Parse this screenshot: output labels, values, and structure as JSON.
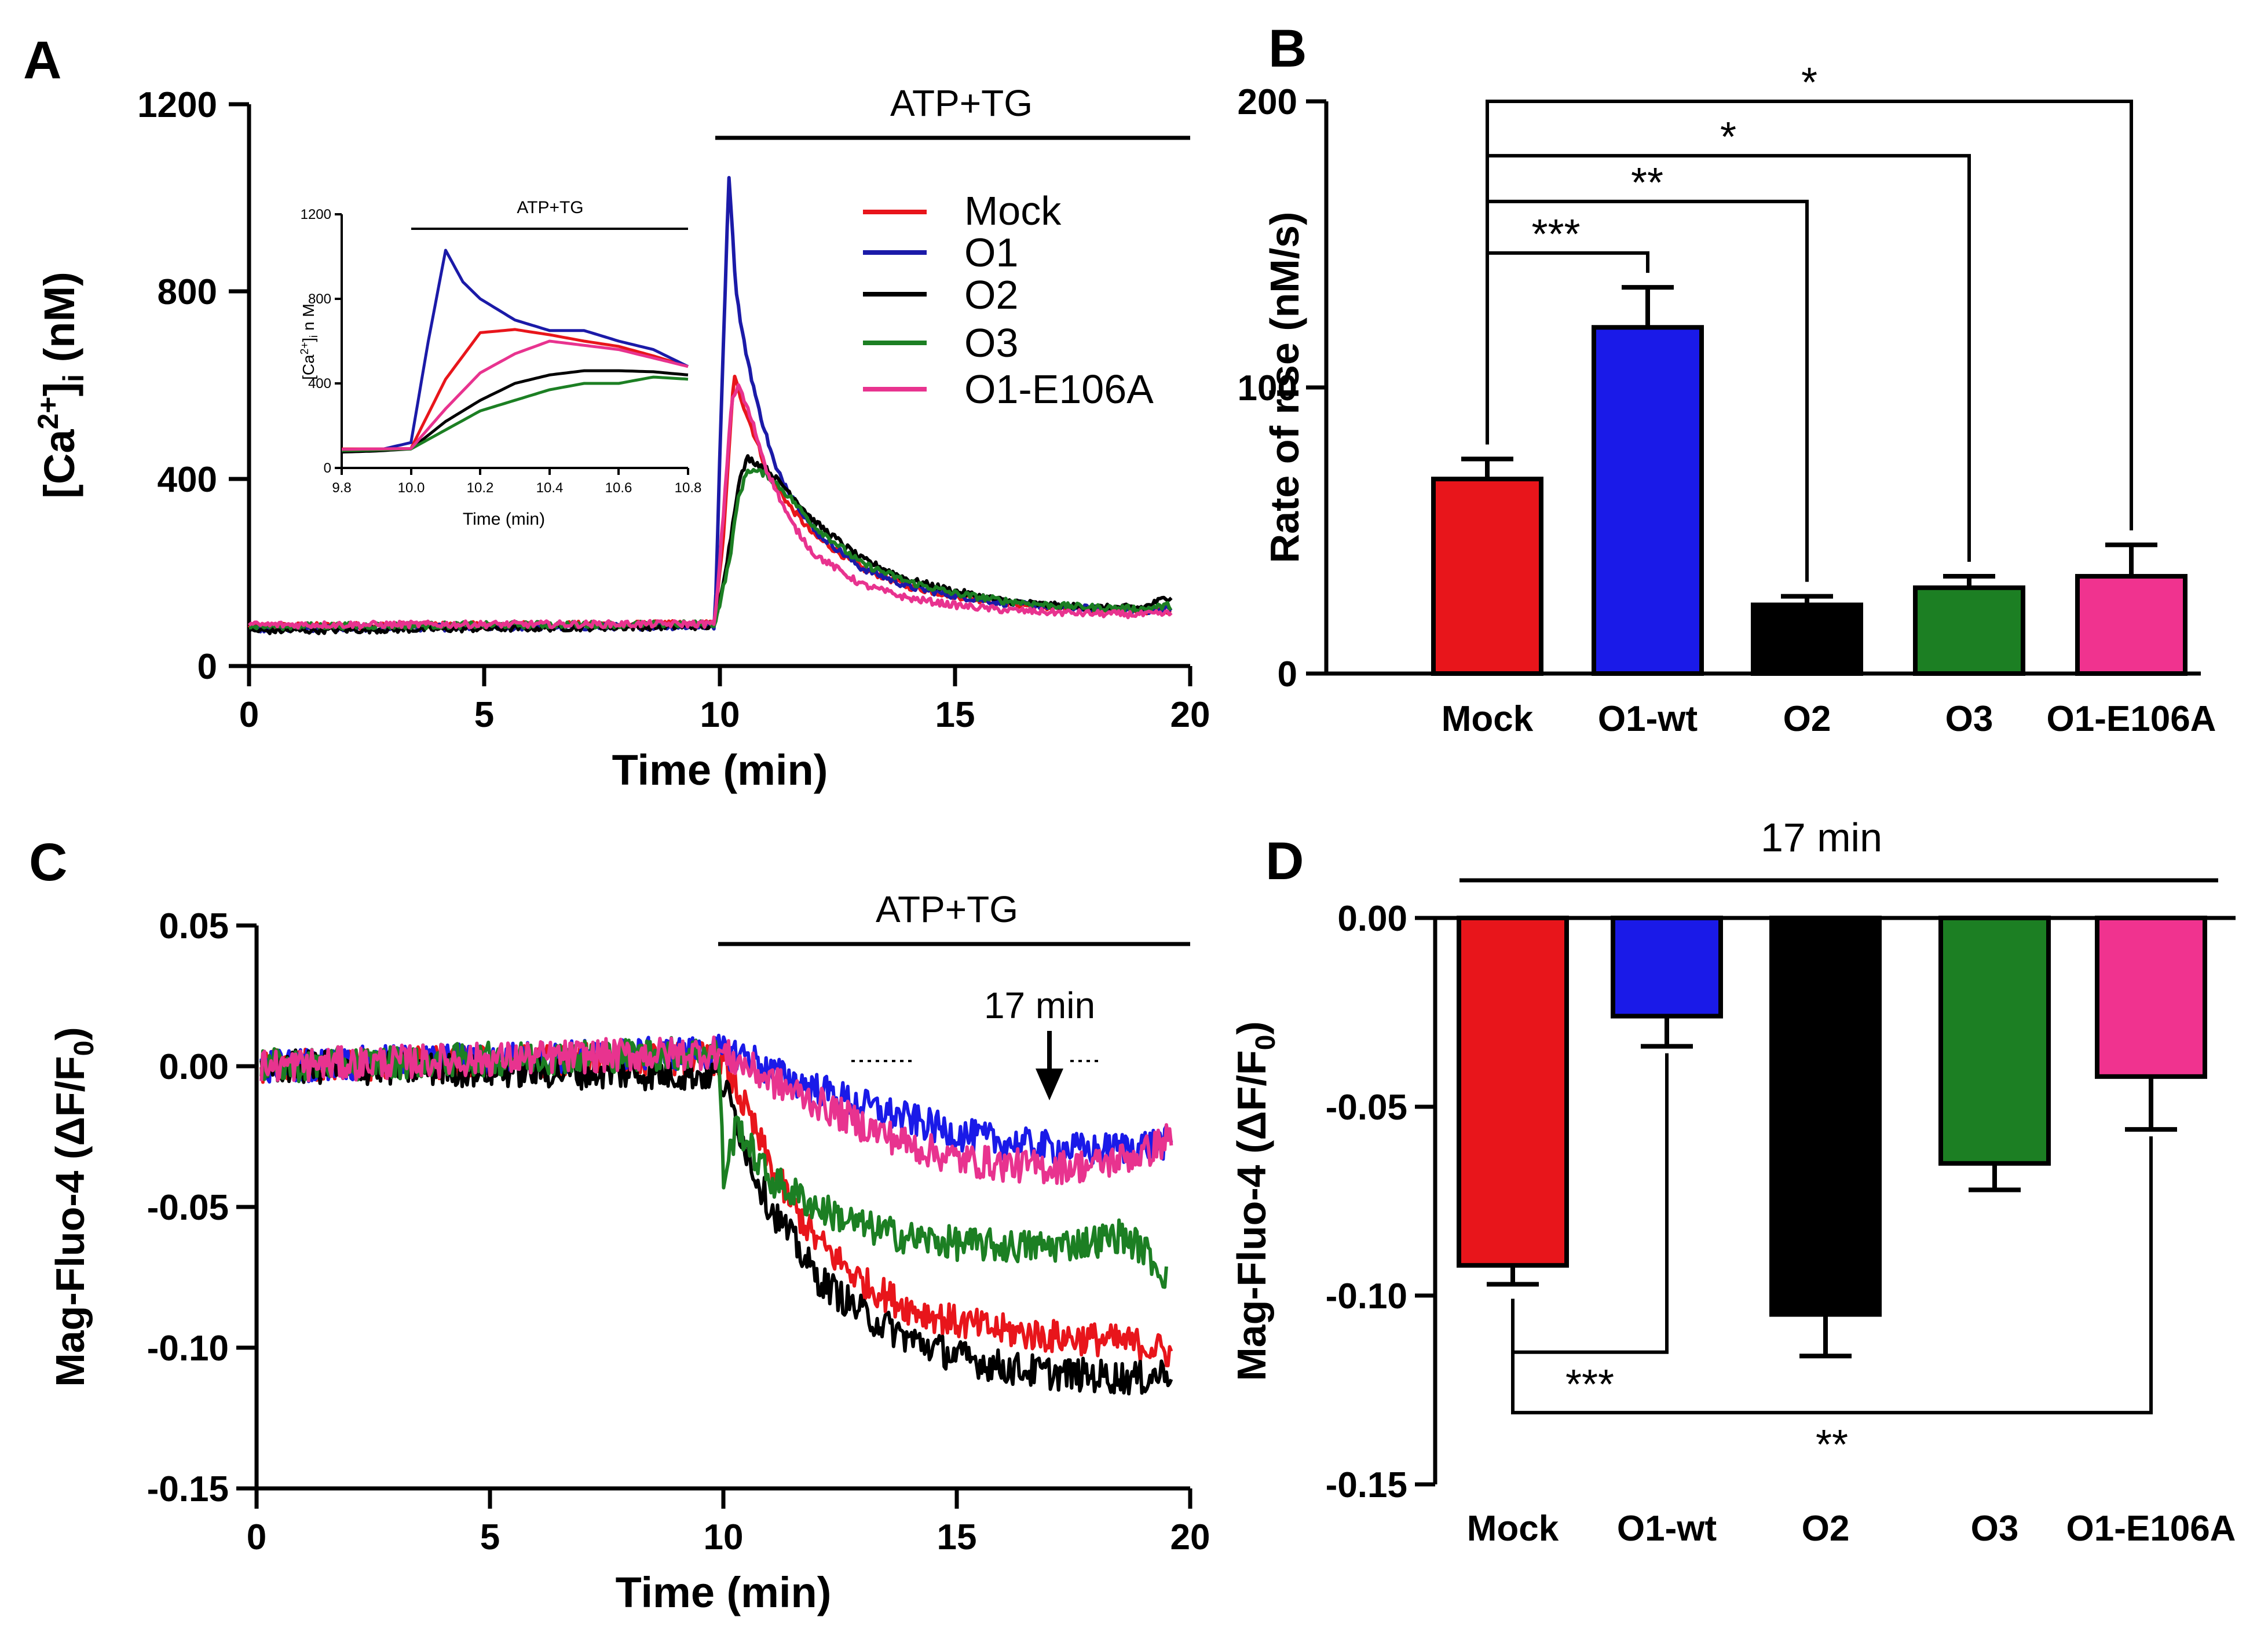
{
  "chart_data": [
    {
      "panel": "A",
      "type": "line",
      "stim_label": "ATP+TG",
      "xlabel": "Time (min)",
      "ylabel": {
        "base": "[Ca",
        "sup": "2+",
        "close": "]",
        "sub": "i",
        "unit": " (nM)"
      },
      "xlim": [
        0,
        20
      ],
      "ylim": [
        0,
        1200
      ],
      "xticks": [
        "0",
        "5",
        "10",
        "15",
        "20"
      ],
      "yticks": [
        "0",
        "400",
        "800",
        "1200"
      ],
      "stim_range": [
        10,
        20
      ],
      "legend": [
        "Mock",
        "O1",
        "O2",
        "O3",
        "O1-E106A"
      ],
      "series": [
        {
          "name": "Mock",
          "color": "#e8151b",
          "baseline": 88,
          "x": [
            0,
            9.9,
            10.1,
            10.3,
            10.5,
            11,
            11.5,
            12,
            13,
            14,
            15,
            16,
            17,
            18,
            19,
            19.6
          ],
          "y": [
            85,
            90,
            300,
            620,
            560,
            420,
            340,
            280,
            210,
            170,
            150,
            135,
            125,
            120,
            118,
            120
          ]
        },
        {
          "name": "O1",
          "color": "#1b1aa8",
          "baseline": 82,
          "x": [
            0,
            9.9,
            10.05,
            10.2,
            10.35,
            10.5,
            10.8,
            11.2,
            12,
            13,
            14,
            15,
            16,
            17,
            18,
            19,
            19.6
          ],
          "y": [
            80,
            85,
            600,
            1050,
            800,
            700,
            560,
            420,
            290,
            210,
            170,
            150,
            135,
            128,
            122,
            118,
            122
          ]
        },
        {
          "name": "O2",
          "color": "#000000",
          "baseline": 75,
          "x": [
            0,
            9.9,
            10.2,
            10.4,
            10.6,
            11,
            11.5,
            12,
            13,
            14,
            15,
            16,
            17,
            18,
            19,
            19.6
          ],
          "y": [
            75,
            85,
            250,
            390,
            445,
            420,
            370,
            310,
            230,
            185,
            160,
            140,
            130,
            125,
            125,
            150
          ]
        },
        {
          "name": "O3",
          "color": "#1c7f23",
          "baseline": 85,
          "x": [
            0,
            9.9,
            10.2,
            10.4,
            10.6,
            11,
            11.5,
            12,
            13,
            14,
            15,
            16,
            17,
            18,
            19,
            19.6
          ],
          "y": [
            85,
            90,
            220,
            360,
            420,
            410,
            360,
            300,
            220,
            180,
            155,
            140,
            130,
            125,
            122,
            130
          ]
        },
        {
          "name": "O1-E106A",
          "color": "#e8338f",
          "baseline": 90,
          "x": [
            0,
            9.9,
            10.1,
            10.25,
            10.4,
            10.7,
            11,
            11.5,
            12,
            13,
            14,
            15,
            16,
            17,
            18,
            19,
            19.6
          ],
          "y": [
            88,
            90,
            350,
            560,
            600,
            520,
            420,
            310,
            240,
            175,
            145,
            130,
            120,
            115,
            112,
            110,
            112
          ]
        }
      ],
      "inset": {
        "type": "line",
        "stim_label": "ATP+TG",
        "xlabel": "Time (min)",
        "ylabel": {
          "base": "[Ca",
          "sup": "2+",
          "close": "]",
          "sub": "i",
          "unit": " n M"
        },
        "xlim": [
          9.8,
          10.8
        ],
        "ylim": [
          0,
          1200
        ],
        "xticks": [
          "9.8",
          "10.0",
          "10.2",
          "10.4",
          "10.6",
          "10.8"
        ],
        "yticks": [
          "0",
          "400",
          "800",
          "1200"
        ],
        "stim_range": [
          10,
          10.8
        ],
        "series": [
          {
            "name": "Mock",
            "color": "#e8151b",
            "x": [
              9.8,
              9.9,
              10.0,
              10.1,
              10.2,
              10.3,
              10.4,
              10.5,
              10.6,
              10.7,
              10.8
            ],
            "y": [
              90,
              90,
              92,
              420,
              640,
              655,
              630,
              600,
              575,
              530,
              480
            ]
          },
          {
            "name": "O1",
            "color": "#1b1aa8",
            "x": [
              9.8,
              9.9,
              10.0,
              10.05,
              10.1,
              10.15,
              10.2,
              10.3,
              10.4,
              10.5,
              10.6,
              10.7,
              10.8
            ],
            "y": [
              80,
              82,
              120,
              600,
              1030,
              880,
              800,
              700,
              650,
              650,
              600,
              560,
              480
            ]
          },
          {
            "name": "O2",
            "color": "#000000",
            "x": [
              9.8,
              9.9,
              10.0,
              10.1,
              10.2,
              10.3,
              10.4,
              10.5,
              10.6,
              10.7,
              10.8
            ],
            "y": [
              75,
              80,
              90,
              220,
              320,
              400,
              440,
              460,
              460,
              455,
              440
            ]
          },
          {
            "name": "O3",
            "color": "#1c7f23",
            "x": [
              9.8,
              9.9,
              10.0,
              10.1,
              10.2,
              10.3,
              10.4,
              10.5,
              10.6,
              10.7,
              10.8
            ],
            "y": [
              82,
              85,
              90,
              180,
              270,
              320,
              370,
              400,
              400,
              430,
              420
            ]
          },
          {
            "name": "O1-E106A",
            "color": "#e8338f",
            "x": [
              9.8,
              9.9,
              10.0,
              10.1,
              10.2,
              10.3,
              10.4,
              10.5,
              10.6,
              10.7,
              10.8
            ],
            "y": [
              88,
              90,
              92,
              280,
              450,
              540,
              600,
              580,
              560,
              520,
              480
            ]
          }
        ]
      }
    },
    {
      "panel": "B",
      "type": "bar",
      "ylabel": "Rate of rise (nM/s)",
      "ylim": [
        0,
        200
      ],
      "yticks": [
        "0",
        "100",
        "200"
      ],
      "categories": [
        "Mock",
        "O1-wt",
        "O2",
        "O3",
        "O1-E106A"
      ],
      "values": [
        68,
        121,
        24,
        30,
        34
      ],
      "errors": [
        7,
        14,
        3,
        4,
        11
      ],
      "colors": [
        "#e8151b",
        "#1a1ae8",
        "#000000",
        "#1c7f23",
        "#f0338f"
      ],
      "significance": [
        {
          "from": 0,
          "to": 1,
          "label": "***",
          "level": 147
        },
        {
          "from": 0,
          "to": 2,
          "label": "**",
          "level": 165
        },
        {
          "from": 0,
          "to": 3,
          "label": "*",
          "level": 181
        },
        {
          "from": 0,
          "to": 4,
          "label": "*",
          "level": 200
        }
      ]
    },
    {
      "panel": "C",
      "type": "line",
      "stim_label": "ATP+TG",
      "annotation": "17 min",
      "annotation_x": 17,
      "xlabel": "Time (min)",
      "ylabel": {
        "base": "Mag-Fluo-4 (",
        "delta": "ΔF/F",
        "sub": "0",
        "close": ")"
      },
      "xlim": [
        0,
        20
      ],
      "ylim": [
        -0.15,
        0.05
      ],
      "xticks": [
        "0",
        "5",
        "10",
        "15",
        "20"
      ],
      "yticks": [
        "-0.15",
        "-0.10",
        "-0.05",
        "0.00",
        "0.05"
      ],
      "stim_range": [
        10,
        20
      ],
      "series": [
        {
          "name": "Mock",
          "color": "#e8151b",
          "x": [
            0,
            9.9,
            10.2,
            10.6,
            11,
            11.5,
            12,
            13,
            14,
            15,
            16,
            17,
            18,
            19,
            19.6
          ],
          "y": [
            0,
            0.003,
            -0.005,
            -0.02,
            -0.035,
            -0.05,
            -0.062,
            -0.077,
            -0.086,
            -0.091,
            -0.094,
            -0.096,
            -0.097,
            -0.099,
            -0.102
          ]
        },
        {
          "name": "O1",
          "color": "#1a1ae8",
          "x": [
            0,
            9.9,
            10.5,
            11,
            12,
            13,
            14,
            15,
            16,
            17,
            18,
            19,
            19.6
          ],
          "y": [
            0,
            0.005,
            0.004,
            -0.002,
            -0.008,
            -0.014,
            -0.019,
            -0.024,
            -0.027,
            -0.029,
            -0.03,
            -0.028,
            -0.027
          ]
        },
        {
          "name": "O2",
          "color": "#000000",
          "x": [
            0,
            9.9,
            10.2,
            10.6,
            11,
            11.5,
            12,
            13,
            14,
            15,
            16,
            17,
            18,
            19,
            19.6
          ],
          "y": [
            0,
            -0.003,
            -0.015,
            -0.035,
            -0.05,
            -0.062,
            -0.075,
            -0.088,
            -0.097,
            -0.103,
            -0.107,
            -0.109,
            -0.11,
            -0.111,
            -0.108
          ]
        },
        {
          "name": "O3",
          "color": "#1c7f23",
          "x": [
            0,
            9.9,
            10.0,
            10.3,
            10.6,
            11,
            12,
            13,
            14,
            15,
            16,
            17,
            18,
            18.5,
            19,
            19.5
          ],
          "y": [
            0,
            0.005,
            -0.04,
            -0.02,
            -0.03,
            -0.04,
            -0.05,
            -0.057,
            -0.061,
            -0.063,
            -0.064,
            -0.064,
            -0.062,
            -0.06,
            -0.065,
            -0.075
          ]
        },
        {
          "name": "O1-E106A",
          "color": "#e8338f",
          "x": [
            0,
            9.9,
            10.5,
            11,
            12,
            13,
            14,
            15,
            16,
            17,
            18,
            19,
            19.6
          ],
          "y": [
            0,
            0.005,
            0.0,
            -0.005,
            -0.013,
            -0.021,
            -0.028,
            -0.033,
            -0.035,
            -0.036,
            -0.035,
            -0.031,
            -0.025
          ]
        }
      ]
    },
    {
      "panel": "D",
      "type": "bar",
      "title": "17 min",
      "ylabel": {
        "base": "Mag-Fluo-4 (",
        "delta": "ΔF/F",
        "sub": "0",
        "close": ")"
      },
      "ylim": [
        -0.15,
        0
      ],
      "yticks": [
        "-0.15",
        "-0.10",
        "-0.05",
        "0.00"
      ],
      "categories": [
        "Mock",
        "O1-wt",
        "O2",
        "O3",
        "O1-E106A"
      ],
      "values": [
        -0.092,
        -0.026,
        -0.105,
        -0.065,
        -0.042
      ],
      "errors": [
        0.005,
        0.008,
        0.011,
        0.007,
        0.014
      ],
      "colors": [
        "#e8151b",
        "#1a1ae8",
        "#000000",
        "#1c7f23",
        "#f0338f"
      ],
      "significance": [
        {
          "from": 0,
          "to": 1,
          "label": "***",
          "level": -0.115
        },
        {
          "from": 0,
          "to": 4,
          "label": "**",
          "level": -0.131
        }
      ]
    }
  ],
  "panel_letters": [
    "A",
    "B",
    "C",
    "D"
  ]
}
